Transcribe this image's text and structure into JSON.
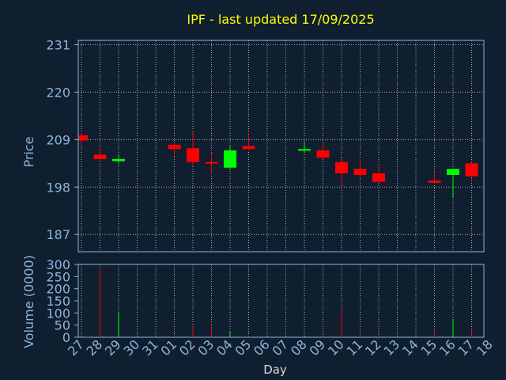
{
  "chart_data": {
    "type": "candlestick",
    "title": "IPF - last updated 17/09/2025",
    "xlabel": "Day",
    "price_panel": {
      "ylabel": "Price",
      "ylim": [
        183,
        232
      ],
      "yticks": [
        187,
        198,
        209,
        220,
        231
      ],
      "grid": true
    },
    "volume_panel": {
      "ylabel": "Volume (0000)",
      "ylim": [
        0,
        300
      ],
      "yticks": [
        0,
        50,
        100,
        150,
        200,
        250,
        300
      ]
    },
    "x_ticks": [
      "27",
      "28",
      "29",
      "30",
      "31",
      "01",
      "02",
      "03",
      "04",
      "05",
      "06",
      "07",
      "08",
      "09",
      "10",
      "11",
      "12",
      "13",
      "14",
      "15",
      "16",
      "17",
      "18"
    ],
    "candles": [
      {
        "day": "27",
        "open": 210.0,
        "high": 210.5,
        "low": 208.0,
        "close": 208.8,
        "volume": 0
      },
      {
        "day": "28",
        "open": 205.5,
        "high": 207.5,
        "low": 204.0,
        "close": 204.5,
        "volume": 280
      },
      {
        "day": "29",
        "open": 204.0,
        "high": 205.5,
        "low": 203.5,
        "close": 204.5,
        "volume": 105
      },
      {
        "day": "01",
        "open": 207.8,
        "high": 208.2,
        "low": 205.0,
        "close": 206.8,
        "volume": 8
      },
      {
        "day": "02",
        "open": 207.0,
        "high": 211.0,
        "low": 203.0,
        "close": 203.8,
        "volume": 45
      },
      {
        "day": "03",
        "open": 203.8,
        "high": 206.0,
        "low": 201.0,
        "close": 203.5,
        "volume": 50
      },
      {
        "day": "04",
        "open": 202.5,
        "high": 207.5,
        "low": 202.0,
        "close": 206.5,
        "volume": 25
      },
      {
        "day": "05",
        "open": 207.5,
        "high": 210.5,
        "low": 206.5,
        "close": 206.8,
        "volume": 5
      },
      {
        "day": "08",
        "open": 206.5,
        "high": 208.5,
        "low": 206.0,
        "close": 206.8,
        "volume": 3
      },
      {
        "day": "09",
        "open": 206.5,
        "high": 208.0,
        "low": 204.5,
        "close": 204.8,
        "volume": 12
      },
      {
        "day": "10",
        "open": 203.8,
        "high": 204.8,
        "low": 198.5,
        "close": 201.2,
        "volume": 110
      },
      {
        "day": "11",
        "open": 202.2,
        "high": 204.5,
        "low": 200.5,
        "close": 200.8,
        "volume": 15
      },
      {
        "day": "12",
        "open": 201.2,
        "high": 203.0,
        "low": 199.0,
        "close": 199.2,
        "volume": 12
      },
      {
        "day": "15",
        "open": 199.5,
        "high": 201.5,
        "low": 198.8,
        "close": 199.0,
        "volume": 28
      },
      {
        "day": "16",
        "open": 200.8,
        "high": 202.3,
        "low": 195.5,
        "close": 202.2,
        "volume": 70
      },
      {
        "day": "17",
        "open": 203.5,
        "high": 203.8,
        "low": 200.0,
        "close": 200.5,
        "volume": 30
      }
    ],
    "colors": {
      "background": "#0f1f30",
      "up": "#00ff00",
      "down": "#ff0000",
      "frame": "#8fb3d9",
      "grid": "#b0b0b0",
      "title": "#ffff00",
      "axis_text": "#8fb3d9",
      "xlabel_text": "#d8d8d8"
    }
  }
}
